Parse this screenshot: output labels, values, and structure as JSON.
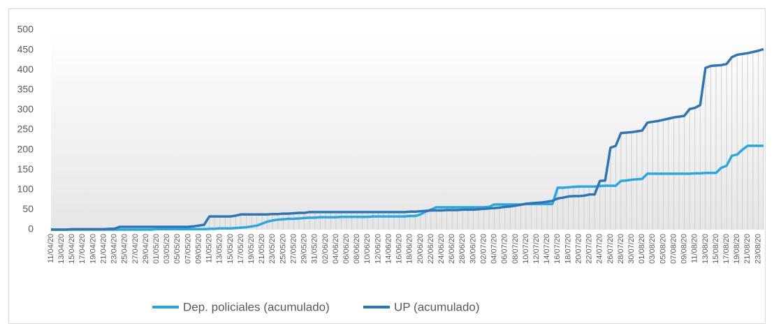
{
  "chart_data": {
    "type": "line",
    "categories": [
      "11/04/20",
      null,
      "13/04/20",
      null,
      "15/04/20",
      null,
      "17/04/20",
      null,
      "19/04/20",
      null,
      "21/04/20",
      null,
      "23/04/20",
      null,
      "25/04/20",
      null,
      "27/04/20",
      null,
      "29/04/20",
      null,
      "01/05/20",
      null,
      "03/05/20",
      null,
      "05/05/20",
      null,
      "07/05/20",
      null,
      "09/05/20",
      null,
      "11/05/20",
      null,
      "13/05/20",
      null,
      "15/05/20",
      null,
      "17/05/20",
      null,
      "19/05/20",
      null,
      "21/05/20",
      null,
      "23/05/20",
      null,
      "25/05/20",
      null,
      "27/05/20",
      null,
      "29/05/20",
      null,
      "31/05/20",
      null,
      "02/06/20",
      null,
      "04/06/20",
      null,
      "06/06/20",
      null,
      "08/06/20",
      null,
      "10/06/20",
      null,
      "12/06/20",
      null,
      "14/06/20",
      null,
      "16/06/20",
      null,
      "18/06/20",
      null,
      "20/06/20",
      null,
      "22/06/20",
      null,
      "24/06/20",
      null,
      "26/06/20",
      null,
      "28/06/20",
      null,
      "30/06/20",
      null,
      "02/07/20",
      null,
      "04/07/20",
      null,
      "06/07/20",
      null,
      "08/07/20",
      null,
      "10/07/20",
      null,
      "12/07/20",
      null,
      "14/07/20",
      null,
      "16/07/20",
      null,
      "18/07/20",
      null,
      "20/07/20",
      null,
      "22/07/20",
      null,
      "24/07/20",
      null,
      "26/07/20",
      null,
      "28/07/20",
      null,
      "30/07/20",
      null,
      "01/08/20",
      null,
      "03/08/20",
      null,
      "05/08/20",
      null,
      "07/08/20",
      null,
      "09/08/20",
      null,
      "11/08/20",
      null,
      "13/08/20",
      null,
      "15/08/20",
      null,
      "17/08/20",
      null,
      "19/08/20",
      null,
      "21/08/20",
      null,
      "23/08/20",
      null
    ],
    "series": [
      {
        "name": "Dep. policiales (acumulado)",
        "color": "#29a8e0",
        "values": [
          0,
          0,
          0,
          0,
          0,
          0,
          0,
          0,
          0,
          0,
          0,
          0,
          0,
          0,
          0,
          0,
          0,
          0,
          0,
          0,
          1,
          1,
          1,
          1,
          1,
          1,
          1,
          1,
          1,
          1,
          2,
          2,
          3,
          3,
          3,
          4,
          5,
          6,
          8,
          10,
          15,
          20,
          23,
          25,
          26,
          27,
          27,
          28,
          29,
          30,
          30,
          31,
          31,
          31,
          31,
          32,
          32,
          32,
          32,
          32,
          32,
          33,
          33,
          33,
          33,
          33,
          33,
          33,
          34,
          34,
          38,
          45,
          50,
          56,
          56,
          56,
          56,
          56,
          56,
          56,
          56,
          56,
          56,
          57,
          63,
          63,
          63,
          63,
          63,
          63,
          64,
          64,
          64,
          64,
          64,
          64,
          105,
          105,
          106,
          107,
          108,
          108,
          108,
          108,
          109,
          110,
          110,
          110,
          122,
          123,
          125,
          126,
          127,
          140,
          140,
          140,
          140,
          140,
          140,
          140,
          140,
          140,
          141,
          141,
          142,
          142,
          142,
          155,
          160,
          185,
          188,
          200,
          210,
          210,
          210,
          210
        ]
      },
      {
        "name": "UP (acumulado)",
        "color": "#2e75b6",
        "values": [
          0,
          0,
          0,
          0,
          1,
          1,
          1,
          1,
          1,
          1,
          1,
          2,
          2,
          7,
          7,
          7,
          7,
          7,
          7,
          7,
          7,
          7,
          7,
          7,
          7,
          7,
          7,
          8,
          10,
          12,
          33,
          33,
          33,
          33,
          33,
          35,
          38,
          38,
          38,
          38,
          38,
          38,
          39,
          39,
          40,
          40,
          41,
          42,
          42,
          44,
          44,
          44,
          44,
          44,
          44,
          44,
          44,
          44,
          44,
          44,
          44,
          44,
          44,
          44,
          44,
          44,
          44,
          44,
          45,
          45,
          46,
          47,
          48,
          48,
          48,
          49,
          49,
          49,
          50,
          50,
          50,
          51,
          52,
          53,
          54,
          55,
          57,
          58,
          60,
          62,
          65,
          66,
          67,
          68,
          70,
          72,
          78,
          80,
          83,
          84,
          84,
          85,
          88,
          88,
          122,
          123,
          205,
          210,
          242,
          243,
          244,
          246,
          248,
          268,
          270,
          272,
          275,
          278,
          281,
          283,
          285,
          302,
          305,
          312,
          405,
          410,
          411,
          412,
          415,
          432,
          438,
          440,
          442,
          445,
          448,
          452
        ]
      }
    ],
    "ylim": [
      0,
      500
    ],
    "yticks": [
      0,
      50,
      100,
      150,
      200,
      250,
      300,
      350,
      400,
      450,
      500
    ],
    "legend": "bottom",
    "drop_lines": true
  }
}
